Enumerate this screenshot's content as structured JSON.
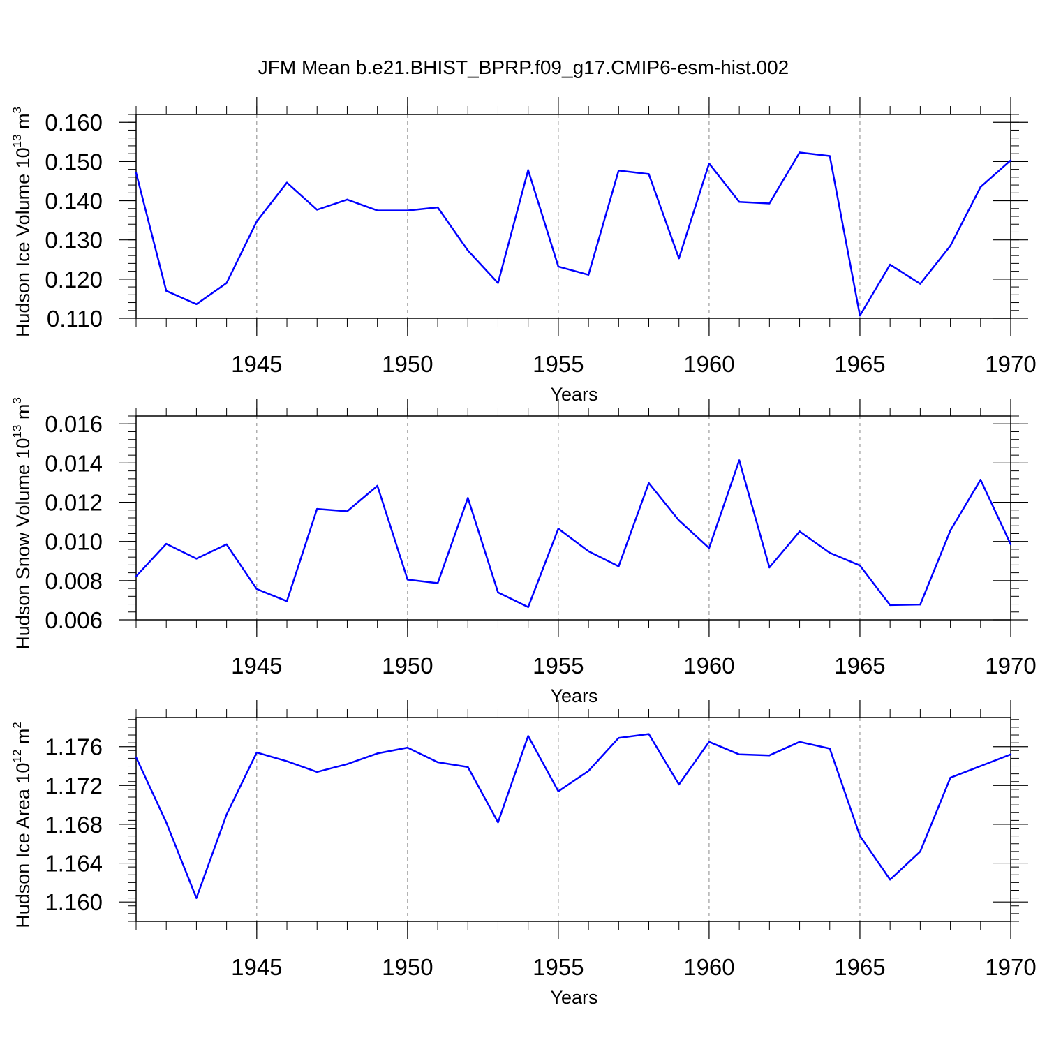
{
  "figure": {
    "title": "JFM Mean b.e21.BHIST_BPRP.f09_g17.CMIP6-esm-hist.002",
    "line_color": "#0000ff",
    "grid_color": "#888888"
  },
  "chart_data": [
    {
      "type": "line",
      "title": "",
      "xlabel": "Years",
      "ylabel": {
        "main": "Hudson Ice Volume 10",
        "exp": "13",
        "unit": " m",
        "unit_exp": "3"
      },
      "xlim": [
        1941,
        1970
      ],
      "ylim": [
        0.11,
        0.162
      ],
      "x_ticks": [
        1945,
        1950,
        1955,
        1960,
        1965,
        1970
      ],
      "x_tick_labels": [
        "1945",
        "1950",
        "1955",
        "1960",
        "1965",
        "1970"
      ],
      "y_ticks": [
        0.11,
        0.12,
        0.13,
        0.14,
        0.15,
        0.16
      ],
      "y_tick_labels": [
        "0.110",
        "0.120",
        "0.130",
        "0.140",
        "0.150",
        "0.160"
      ],
      "y_minor_step": 0.002,
      "grid": "vertical-dashed",
      "x": [
        1941,
        1942,
        1943,
        1944,
        1945,
        1946,
        1947,
        1948,
        1949,
        1950,
        1951,
        1952,
        1953,
        1954,
        1955,
        1956,
        1957,
        1958,
        1959,
        1960,
        1961,
        1962,
        1963,
        1964,
        1965,
        1966,
        1967,
        1968,
        1969,
        1970
      ],
      "series": [
        {
          "name": "Hudson Ice Volume",
          "values": [
            0.1471,
            0.117,
            0.1136,
            0.119,
            0.1347,
            0.1446,
            0.1377,
            0.1403,
            0.1375,
            0.1375,
            0.1383,
            0.1273,
            0.119,
            0.1478,
            0.1232,
            0.1211,
            0.1477,
            0.1468,
            0.1253,
            0.1495,
            0.1397,
            0.1393,
            0.1523,
            0.1514,
            0.1107,
            0.1237,
            0.1188,
            0.1285,
            0.1435,
            0.1503
          ]
        }
      ]
    },
    {
      "type": "line",
      "title": "",
      "xlabel": "Years",
      "ylabel": {
        "main": "Hudson Snow Volume 10",
        "exp": "13",
        "unit": " m",
        "unit_exp": "3"
      },
      "xlim": [
        1941,
        1970
      ],
      "ylim": [
        0.006,
        0.0164
      ],
      "x_ticks": [
        1945,
        1950,
        1955,
        1960,
        1965,
        1970
      ],
      "x_tick_labels": [
        "1945",
        "1950",
        "1955",
        "1960",
        "1965",
        "1970"
      ],
      "y_ticks": [
        0.006,
        0.008,
        0.01,
        0.012,
        0.014,
        0.016
      ],
      "y_tick_labels": [
        "0.006",
        "0.008",
        "0.010",
        "0.012",
        "0.014",
        "0.016"
      ],
      "y_minor_step": 0.0004,
      "grid": "vertical-dashed",
      "x": [
        1941,
        1942,
        1943,
        1944,
        1945,
        1946,
        1947,
        1948,
        1949,
        1950,
        1951,
        1952,
        1953,
        1954,
        1955,
        1956,
        1957,
        1958,
        1959,
        1960,
        1961,
        1962,
        1963,
        1964,
        1965,
        1966,
        1967,
        1968,
        1969,
        1970
      ],
      "series": [
        {
          "name": "Hudson Snow Volume",
          "values": [
            0.00822,
            0.00988,
            0.00912,
            0.00985,
            0.00757,
            0.00695,
            0.01166,
            0.01154,
            0.01284,
            0.00805,
            0.00787,
            0.01222,
            0.0074,
            0.00665,
            0.01065,
            0.0095,
            0.00873,
            0.01298,
            0.01107,
            0.00966,
            0.01414,
            0.00867,
            0.01051,
            0.00942,
            0.00877,
            0.00675,
            0.00678,
            0.01056,
            0.01315,
            0.00985
          ]
        }
      ]
    },
    {
      "type": "line",
      "title": "",
      "xlabel": "Years",
      "ylabel": {
        "main": "Hudson Ice Area 10",
        "exp": "12",
        "unit": " m",
        "unit_exp": "2"
      },
      "xlim": [
        1941,
        1970
      ],
      "ylim": [
        1.158,
        1.179
      ],
      "x_ticks": [
        1945,
        1950,
        1955,
        1960,
        1965,
        1970
      ],
      "x_tick_labels": [
        "1945",
        "1950",
        "1955",
        "1960",
        "1965",
        "1970"
      ],
      "y_ticks": [
        1.16,
        1.164,
        1.168,
        1.172,
        1.176
      ],
      "y_tick_labels": [
        "1.160",
        "1.164",
        "1.168",
        "1.172",
        "1.176"
      ],
      "y_minor_step": 0.0008,
      "grid": "vertical-dashed",
      "x": [
        1941,
        1942,
        1943,
        1944,
        1945,
        1946,
        1947,
        1948,
        1949,
        1950,
        1951,
        1952,
        1953,
        1954,
        1955,
        1956,
        1957,
        1958,
        1959,
        1960,
        1961,
        1962,
        1963,
        1964,
        1965,
        1966,
        1967,
        1968,
        1969,
        1970
      ],
      "series": [
        {
          "name": "Hudson Ice Area",
          "values": [
            1.1749,
            1.1682,
            1.1604,
            1.169,
            1.1754,
            1.1745,
            1.1734,
            1.1742,
            1.1753,
            1.1759,
            1.1744,
            1.1739,
            1.1682,
            1.1771,
            1.1714,
            1.1735,
            1.1769,
            1.1773,
            1.1721,
            1.1765,
            1.1752,
            1.1751,
            1.1765,
            1.1758,
            1.1668,
            1.1623,
            1.1652,
            1.1728,
            1.174,
            1.1752
          ]
        }
      ]
    }
  ]
}
